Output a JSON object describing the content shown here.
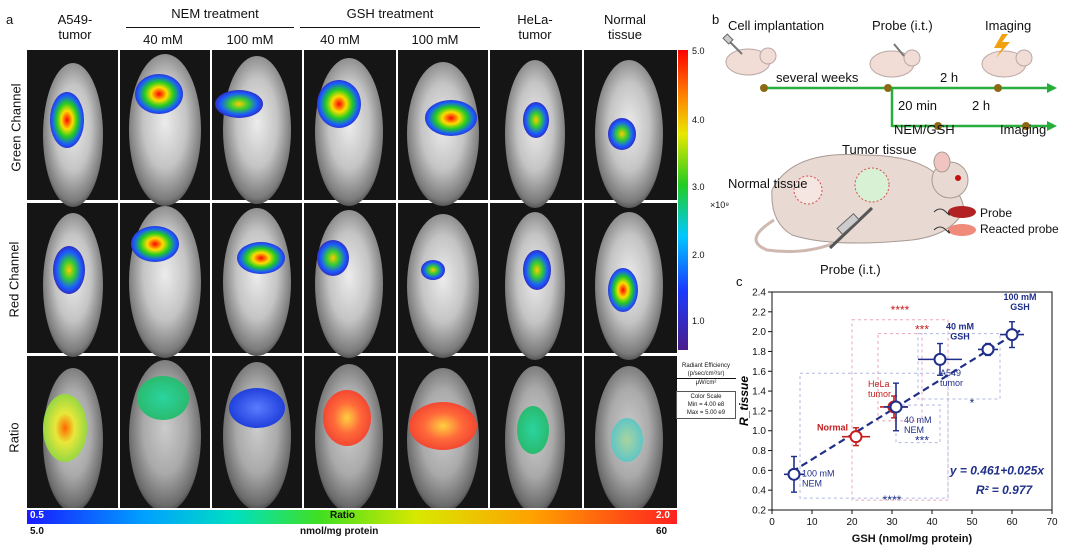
{
  "panel_a": {
    "letter": "a",
    "columns": [
      {
        "label": "A549-\ntumor"
      },
      {
        "label": "40 mM"
      },
      {
        "label": "100 mM"
      },
      {
        "label": "40 mM"
      },
      {
        "label": "100 mM"
      },
      {
        "label": "HeLa-\ntumor"
      },
      {
        "label": "Normal\ntissue"
      }
    ],
    "group_nem": "NEM treatment",
    "group_gsh": "GSH treatment",
    "rows": [
      "Green Channel",
      "Red Channel",
      "Ratio"
    ],
    "colorbar_right": {
      "ticks": [
        "5.0",
        "4.0",
        "3.0",
        "2.0",
        "1.0"
      ],
      "exponent": "×10⁹",
      "title": "Radiant Efficiency",
      "unit_line1": "(p/sec/cm²/sr)",
      "unit_line2": "μW/cm²",
      "scale_title": "Color Scale",
      "scale_min": "Min = 4.00 e8",
      "scale_max": "Max = 5.00 e9"
    },
    "colorbar_bottom": {
      "left_value": "0.5",
      "center_label": "Ratio",
      "right_value": "2.0",
      "left_sub": "5.0",
      "center_sub": "nmol/mg protein",
      "right_sub": "60"
    }
  },
  "panel_b": {
    "letter": "b",
    "cell_implantation": "Cell implantation",
    "probe_it": "Probe (i.t.)",
    "imaging_top": "Imaging",
    "several_weeks": "several weeks",
    "two_h_top": "2 h",
    "twenty_min": "20 min",
    "two_h_bottom": "2 h",
    "nem_gsh": "NEM/GSH",
    "imaging_bottom": "Imaging",
    "tumor_tissue": "Tumor tissue",
    "normal_tissue": "Normal tissue",
    "probe_bottom": "Probe (i.t.)",
    "legend_probe": "Probe",
    "legend_reacted": "Reacted probe",
    "colors": {
      "probe": "#b22222",
      "reacted": "#f08a7a",
      "arrow": "#27ae3c",
      "dot": "#8b6914"
    }
  },
  "panel_c": {
    "letter": "c",
    "equation": "y = 0.461+0.025x",
    "r2": "R² = 0.977",
    "sig_4star_top": "****",
    "sig_3star_top": "***",
    "sig_star": "*",
    "sig_3star_mid": "***",
    "sig_4star_bottom": "****",
    "point_labels": {
      "nem100": "100 mM\nNEM",
      "normal": "Normal",
      "hela": "HeLa\ntumor",
      "nem40": "40 mM\nNEM",
      "a549": "A549\ntumor",
      "gsh40": "40 mM\nGSH",
      "gsh100": "100 mM\nGSH"
    }
  },
  "chart_data": {
    "type": "scatter",
    "xlabel": "GSH (nmol/mg protein)",
    "ylabel": "R_tissue",
    "xlim": [
      0,
      70
    ],
    "ylim": [
      0.2,
      2.4
    ],
    "xticks": [
      0,
      10,
      20,
      30,
      40,
      50,
      60,
      70
    ],
    "yticks": [
      0.2,
      0.4,
      0.6,
      0.8,
      1.0,
      1.2,
      1.4,
      1.6,
      1.8,
      2.0,
      2.2,
      2.4
    ],
    "points": [
      {
        "x": 5.5,
        "y": 0.56,
        "xerr": 2.5,
        "yerr": 0.18,
        "color": "#1f2f8a"
      },
      {
        "x": 21.0,
        "y": 0.94,
        "xerr": 3.5,
        "yerr": 0.09,
        "color": "#c41e1e"
      },
      {
        "x": 30.5,
        "y": 1.24,
        "xerr": 3.5,
        "yerr": 0.11,
        "color": "#c41e1e"
      },
      {
        "x": 31.0,
        "y": 1.24,
        "xerr": 3.0,
        "yerr": 0.24,
        "color": "#1f2f8a"
      },
      {
        "x": 42.0,
        "y": 1.72,
        "xerr": 5.5,
        "yerr": 0.16,
        "color": "#1f2f8a"
      },
      {
        "x": 54.0,
        "y": 1.82,
        "xerr": 2.5,
        "yerr": 0.06,
        "color": "#1f2f8a"
      },
      {
        "x": 60.0,
        "y": 1.97,
        "xerr": 3.0,
        "yerr": 0.13,
        "color": "#1f2f8a"
      }
    ],
    "fit": {
      "intercept": 0.461,
      "slope": 0.025,
      "x_range": [
        5,
        62
      ]
    },
    "grid": false
  }
}
